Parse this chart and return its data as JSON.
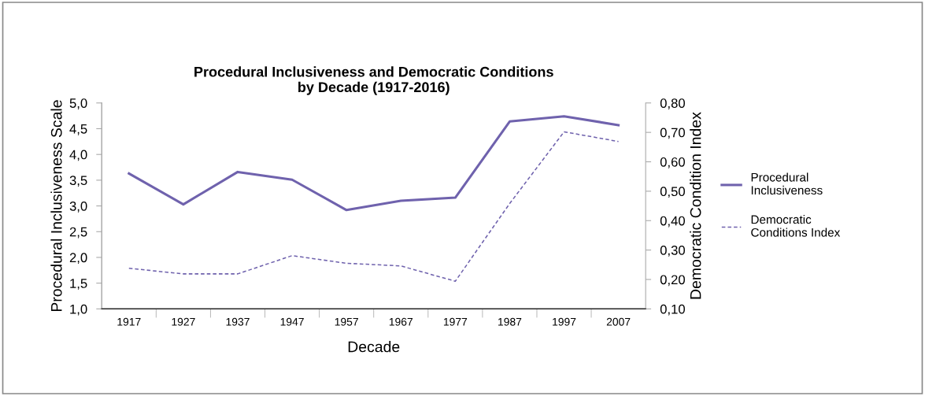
{
  "chart_data": {
    "type": "line",
    "title": "Procedural Inclusiveness and Democratic Conditions\nby Decade (1917-2016)",
    "xlabel": "Decade",
    "ylabel": "Procedural Inclusiveness Scale",
    "y2label": "Democratic Condition Index",
    "categories": [
      "1917",
      "1927",
      "1937",
      "1947",
      "1957",
      "1967",
      "1977",
      "1987",
      "1997",
      "2007"
    ],
    "series": [
      {
        "name": "Procedural\nInclusiveness",
        "color": "#6f62ad",
        "line_style": "solid",
        "values": [
          3.63,
          3.03,
          3.66,
          3.51,
          2.92,
          3.1,
          3.16,
          4.64,
          4.74,
          4.57
        ]
      },
      {
        "name": "Democratic\nConditions Index",
        "color": "#6f62ad",
        "line_style": "dashed",
        "axis": "y2",
        "values": [
          0.238,
          0.219,
          0.219,
          0.281,
          0.255,
          0.246,
          0.194,
          0.458,
          0.702,
          0.669
        ]
      }
    ],
    "ylim": [
      1.0,
      5.0
    ],
    "yticks": [
      {
        "value": 1.0,
        "label": "1,0"
      },
      {
        "value": 1.5,
        "label": "1,5"
      },
      {
        "value": 2.0,
        "label": "2,0"
      },
      {
        "value": 2.5,
        "label": "2,5"
      },
      {
        "value": 3.0,
        "label": "3,0"
      },
      {
        "value": 3.5,
        "label": "3,5"
      },
      {
        "value": 4.0,
        "label": "4,0"
      },
      {
        "value": 4.5,
        "label": "4,5"
      },
      {
        "value": 5.0,
        "label": "5,0"
      }
    ],
    "y2lim": [
      0.1,
      0.8
    ],
    "y2ticks": [
      {
        "value": 0.1,
        "label": "0,10"
      },
      {
        "value": 0.2,
        "label": "0,20"
      },
      {
        "value": 0.3,
        "label": "0,30"
      },
      {
        "value": 0.4,
        "label": "0,40"
      },
      {
        "value": 0.5,
        "label": "0,50"
      },
      {
        "value": 0.6,
        "label": "0,60"
      },
      {
        "value": 0.7,
        "label": "0,70"
      },
      {
        "value": 0.8,
        "label": "0,80"
      }
    ],
    "legend": "right",
    "grid": false,
    "marker": "none"
  }
}
